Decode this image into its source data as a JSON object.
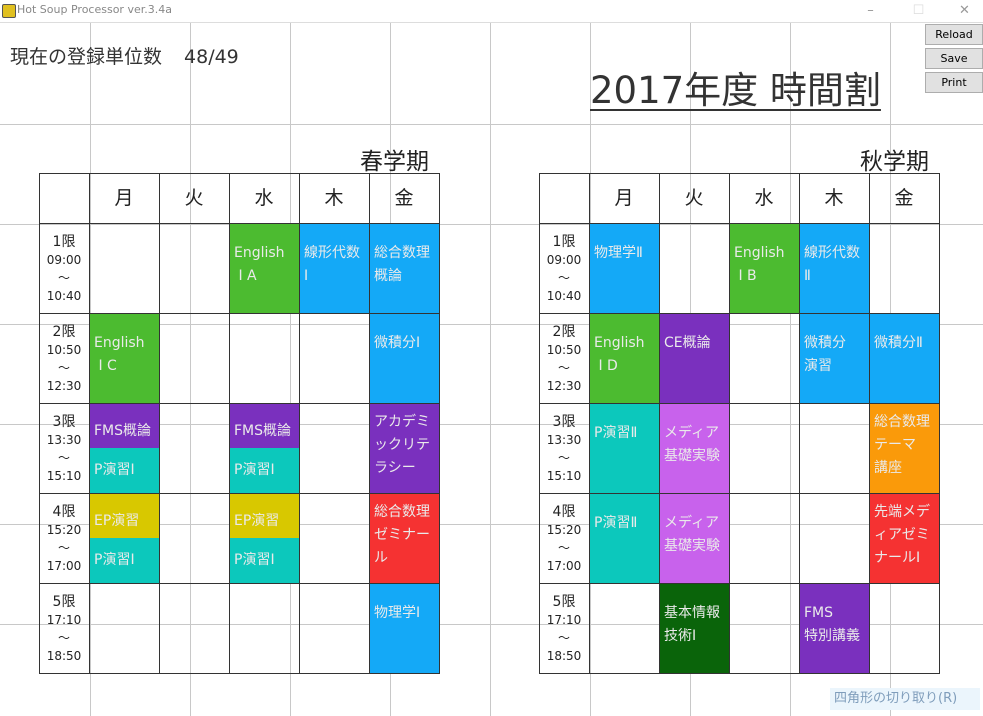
{
  "window": {
    "title": "Hot Soup Processor ver.3.4a",
    "minimize": "–",
    "maximize": "☐",
    "close": "✕"
  },
  "header": {
    "units_label": "現在の登録単位数",
    "units_value": "48/49",
    "title": "2017年度 時間割"
  },
  "buttons": {
    "reload": "Reload",
    "save": "Save",
    "print": "Print"
  },
  "tooltip": "四角形の切り取り(R)",
  "days": [
    "月",
    "火",
    "水",
    "木",
    "金"
  ],
  "periods": [
    {
      "name": "1限",
      "start": "09:00",
      "sep": "～",
      "end": "10:40"
    },
    {
      "name": "2限",
      "start": "10:50",
      "sep": "～",
      "end": "12:30"
    },
    {
      "name": "3限",
      "start": "13:30",
      "sep": "～",
      "end": "15:10"
    },
    {
      "name": "4限",
      "start": "15:20",
      "sep": "～",
      "end": "17:00"
    },
    {
      "name": "5限",
      "start": "17:10",
      "sep": "～",
      "end": "18:50"
    }
  ],
  "colors": {
    "green": "#4cbb30",
    "blue": "#14a9f7",
    "purple": "#7a30be",
    "teal": "#0cc8bc",
    "yellow": "#d8c800",
    "red": "#f53232",
    "orange": "#fa9a0a",
    "violet": "#c862ec",
    "darkgreen": "#0a640a"
  },
  "terms": [
    {
      "name": "春学期",
      "classes": [
        {
          "day": 2,
          "period": 0,
          "part": "full",
          "color": "green",
          "text": "English\n I A"
        },
        {
          "day": 3,
          "period": 0,
          "part": "full",
          "color": "blue",
          "text": "線形代数\nⅠ"
        },
        {
          "day": 4,
          "period": 0,
          "part": "full",
          "color": "blue",
          "text": "総合数理\n概論"
        },
        {
          "day": 0,
          "period": 1,
          "part": "full",
          "color": "green",
          "text": "English\n I C"
        },
        {
          "day": 4,
          "period": 1,
          "part": "full",
          "color": "blue",
          "text": "微積分Ⅰ"
        },
        {
          "day": 0,
          "period": 2,
          "part": "top",
          "color": "purple",
          "text": "FMS概論"
        },
        {
          "day": 0,
          "period": 2,
          "part": "bottom",
          "color": "teal",
          "text": "P演習Ⅰ"
        },
        {
          "day": 2,
          "period": 2,
          "part": "top",
          "color": "purple",
          "text": "FMS概論"
        },
        {
          "day": 2,
          "period": 2,
          "part": "bottom",
          "color": "teal",
          "text": "P演習Ⅰ"
        },
        {
          "day": 4,
          "period": 2,
          "part": "full",
          "color": "purple",
          "text": "アカデミ\nックリテ\nラシー"
        },
        {
          "day": 0,
          "period": 3,
          "part": "top",
          "color": "yellow",
          "text": "EP演習"
        },
        {
          "day": 0,
          "period": 3,
          "part": "bottom",
          "color": "teal",
          "text": "P演習Ⅰ"
        },
        {
          "day": 2,
          "period": 3,
          "part": "top",
          "color": "yellow",
          "text": "EP演習"
        },
        {
          "day": 2,
          "period": 3,
          "part": "bottom",
          "color": "teal",
          "text": "P演習Ⅰ"
        },
        {
          "day": 4,
          "period": 3,
          "part": "full",
          "color": "red",
          "text": "総合数理\nゼミナー\nル"
        },
        {
          "day": 4,
          "period": 4,
          "part": "full",
          "color": "blue",
          "text": "物理学Ⅰ"
        }
      ]
    },
    {
      "name": "秋学期",
      "classes": [
        {
          "day": 0,
          "period": 0,
          "part": "full",
          "color": "blue",
          "text": "物理学Ⅱ"
        },
        {
          "day": 2,
          "period": 0,
          "part": "full",
          "color": "green",
          "text": "English\n I B"
        },
        {
          "day": 3,
          "period": 0,
          "part": "full",
          "color": "blue",
          "text": "線形代数\nⅡ"
        },
        {
          "day": 0,
          "period": 1,
          "part": "full",
          "color": "green",
          "text": "English\n I D"
        },
        {
          "day": 1,
          "period": 1,
          "part": "full",
          "color": "purple",
          "text": "CE概論"
        },
        {
          "day": 3,
          "period": 1,
          "part": "full",
          "color": "blue",
          "text": "微積分\n演習"
        },
        {
          "day": 4,
          "period": 1,
          "part": "full",
          "color": "blue",
          "text": "微積分Ⅱ"
        },
        {
          "day": 0,
          "period": 2,
          "part": "full",
          "color": "teal",
          "text": "P演習Ⅱ"
        },
        {
          "day": 1,
          "period": 2,
          "part": "full",
          "color": "violet",
          "text": "メディア\n基礎実験"
        },
        {
          "day": 4,
          "period": 2,
          "part": "full",
          "color": "orange",
          "text": "総合数理\nテーマ\n講座"
        },
        {
          "day": 0,
          "period": 3,
          "part": "full",
          "color": "teal",
          "text": "P演習Ⅱ"
        },
        {
          "day": 1,
          "period": 3,
          "part": "full",
          "color": "violet",
          "text": "メディア\n基礎実験"
        },
        {
          "day": 4,
          "period": 3,
          "part": "full",
          "color": "red",
          "text": "先端メデ\nィアゼミ\nナールⅠ"
        },
        {
          "day": 1,
          "period": 4,
          "part": "full",
          "color": "darkgreen",
          "text": "基本情報\n技術Ⅰ"
        },
        {
          "day": 3,
          "period": 4,
          "part": "full",
          "color": "purple",
          "text": "FMS\n特別講義"
        }
      ]
    }
  ]
}
